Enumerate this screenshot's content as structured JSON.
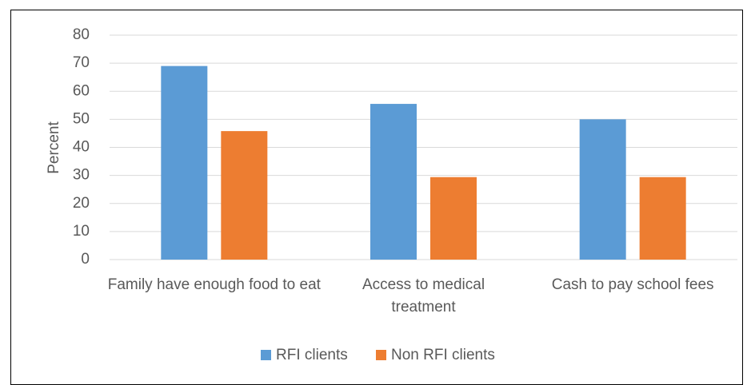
{
  "chart_data": {
    "type": "bar",
    "y_label": "Percent",
    "categories": [
      "Family  have enough food to eat",
      "Access to medical treatment",
      "Cash to pay school fees"
    ],
    "series": [
      {
        "name": "RFI clients",
        "color": "#5b9bd5",
        "values": [
          69,
          55.5,
          50
        ]
      },
      {
        "name": "Non RFI clients",
        "color": "#ed7d31",
        "values": [
          45.8,
          29.4,
          29.4
        ]
      }
    ],
    "ylim": [
      0,
      80
    ],
    "yticks": [
      0,
      10,
      20,
      30,
      40,
      50,
      60,
      70,
      80
    ],
    "grid": true,
    "legend": "bottom"
  }
}
